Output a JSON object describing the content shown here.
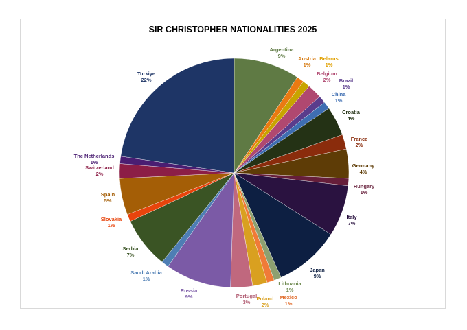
{
  "chart_data": {
    "type": "pie",
    "title": "SIR CHRISTOPHER NATIONALITIES 2025",
    "slices": [
      {
        "label": "Argentina",
        "value": 9,
        "display": "9%",
        "color": "#5f7a44"
      },
      {
        "label": "Austria",
        "value": 1,
        "display": "1%",
        "color": "#ea7a12"
      },
      {
        "label": "Belarus",
        "value": 1,
        "display": "1%",
        "color": "#c8a400"
      },
      {
        "label": "Belgium",
        "value": 2,
        "display": "2%",
        "color": "#b04870"
      },
      {
        "label": "Brazil",
        "value": 1,
        "display": "1%",
        "color": "#5a3c8c"
      },
      {
        "label": "China",
        "value": 1,
        "display": "1%",
        "color": "#3e6eb2"
      },
      {
        "label": "Croatia",
        "value": 4,
        "display": "4%",
        "color": "#243215"
      },
      {
        "label": "France",
        "value": 2,
        "display": "2%",
        "color": "#8a2c0c"
      },
      {
        "label": "Germany",
        "value": 4,
        "display": "4%",
        "color": "#5e3c06"
      },
      {
        "label": "Hungary",
        "value": 1,
        "display": "1%",
        "color": "#661e3a"
      },
      {
        "label": "Italy",
        "value": 7,
        "display": "7%",
        "color": "#2a1240"
      },
      {
        "label": "Japan",
        "value": 9,
        "display": "9%",
        "color": "#0d1f42"
      },
      {
        "label": "Lithuania",
        "value": 1,
        "display": "1%",
        "color": "#8da070"
      },
      {
        "label": "Mexico",
        "value": 1,
        "display": "1%",
        "color": "#f07a38"
      },
      {
        "label": "Poland",
        "value": 2,
        "display": "2%",
        "color": "#d9a020"
      },
      {
        "label": "Portugal",
        "value": 3,
        "display": "3%",
        "color": "#c0687e"
      },
      {
        "label": "Russia",
        "value": 9,
        "display": "9%",
        "color": "#7b5aa6"
      },
      {
        "label": "Saudi Arabia",
        "value": 1,
        "display": "1%",
        "color": "#4e7eb4"
      },
      {
        "label": "Serbia",
        "value": 7,
        "display": "7%",
        "color": "#3a5424"
      },
      {
        "label": "Slovakia",
        "value": 1,
        "display": "1%",
        "color": "#e8440c"
      },
      {
        "label": "Spain",
        "value": 5,
        "display": "5%",
        "color": "#a45e06"
      },
      {
        "label": "Switzerland",
        "value": 2,
        "display": "2%",
        "color": "#8c1e46"
      },
      {
        "label": "The Netherlands",
        "value": 1,
        "display": "1%",
        "color": "#4a1e72"
      },
      {
        "label": "Turkiye",
        "value": 22,
        "display": "22%",
        "color": "#1e3566"
      }
    ],
    "label_colors": {
      "Argentina": "#5f7a44",
      "Austria": "#d67a10",
      "Belarus": "#e0a000",
      "Belgium": "#b04870",
      "Brazil": "#5a3c8c",
      "China": "#3e6eb2",
      "Croatia": "#243215",
      "France": "#8a2c0c",
      "Germany": "#5e3c06",
      "Hungary": "#661e3a",
      "Italy": "#2a1240",
      "Japan": "#0d1f42",
      "Lithuania": "#6f8a50",
      "Mexico": "#e06a28",
      "Poland": "#d9a020",
      "Portugal": "#b05a70",
      "Russia": "#7b5aa6",
      "Saudi Arabia": "#4e7eb4",
      "Serbia": "#3a5424",
      "Slovakia": "#e8440c",
      "Spain": "#a45e06",
      "Switzerland": "#8c1e46",
      "The Netherlands": "#4a1e72",
      "Turkiye": "#1e3566"
    },
    "legend": "none"
  }
}
